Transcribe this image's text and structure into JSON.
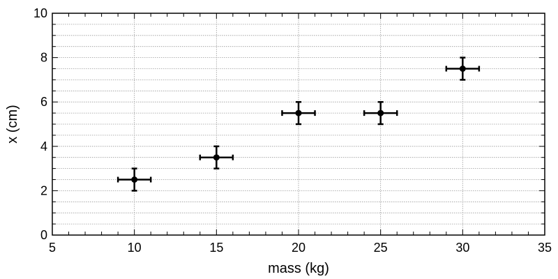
{
  "chart_data": {
    "type": "scatter",
    "title": "",
    "xlabel": "mass (kg)",
    "ylabel": "x (cm)",
    "xlim": [
      5,
      35
    ],
    "ylim": [
      0,
      10
    ],
    "x_ticks": [
      5,
      10,
      15,
      20,
      25,
      30,
      35
    ],
    "y_ticks": [
      0,
      2,
      4,
      6,
      8,
      10
    ],
    "x_minor_step": 1,
    "y_minor_step": 0.5,
    "grid": true,
    "series": [
      {
        "x": [
          10,
          15,
          20,
          25,
          30
        ],
        "y": [
          2.5,
          3.5,
          5.5,
          5.5,
          7.5
        ],
        "x_err": [
          1,
          1,
          1,
          1,
          1
        ],
        "y_err": [
          0.5,
          0.5,
          0.5,
          0.5,
          0.5
        ],
        "color": "#000000"
      }
    ],
    "colors": {
      "grid": "#9a9a9a",
      "axes": "#000000",
      "markers": "#000000"
    }
  }
}
